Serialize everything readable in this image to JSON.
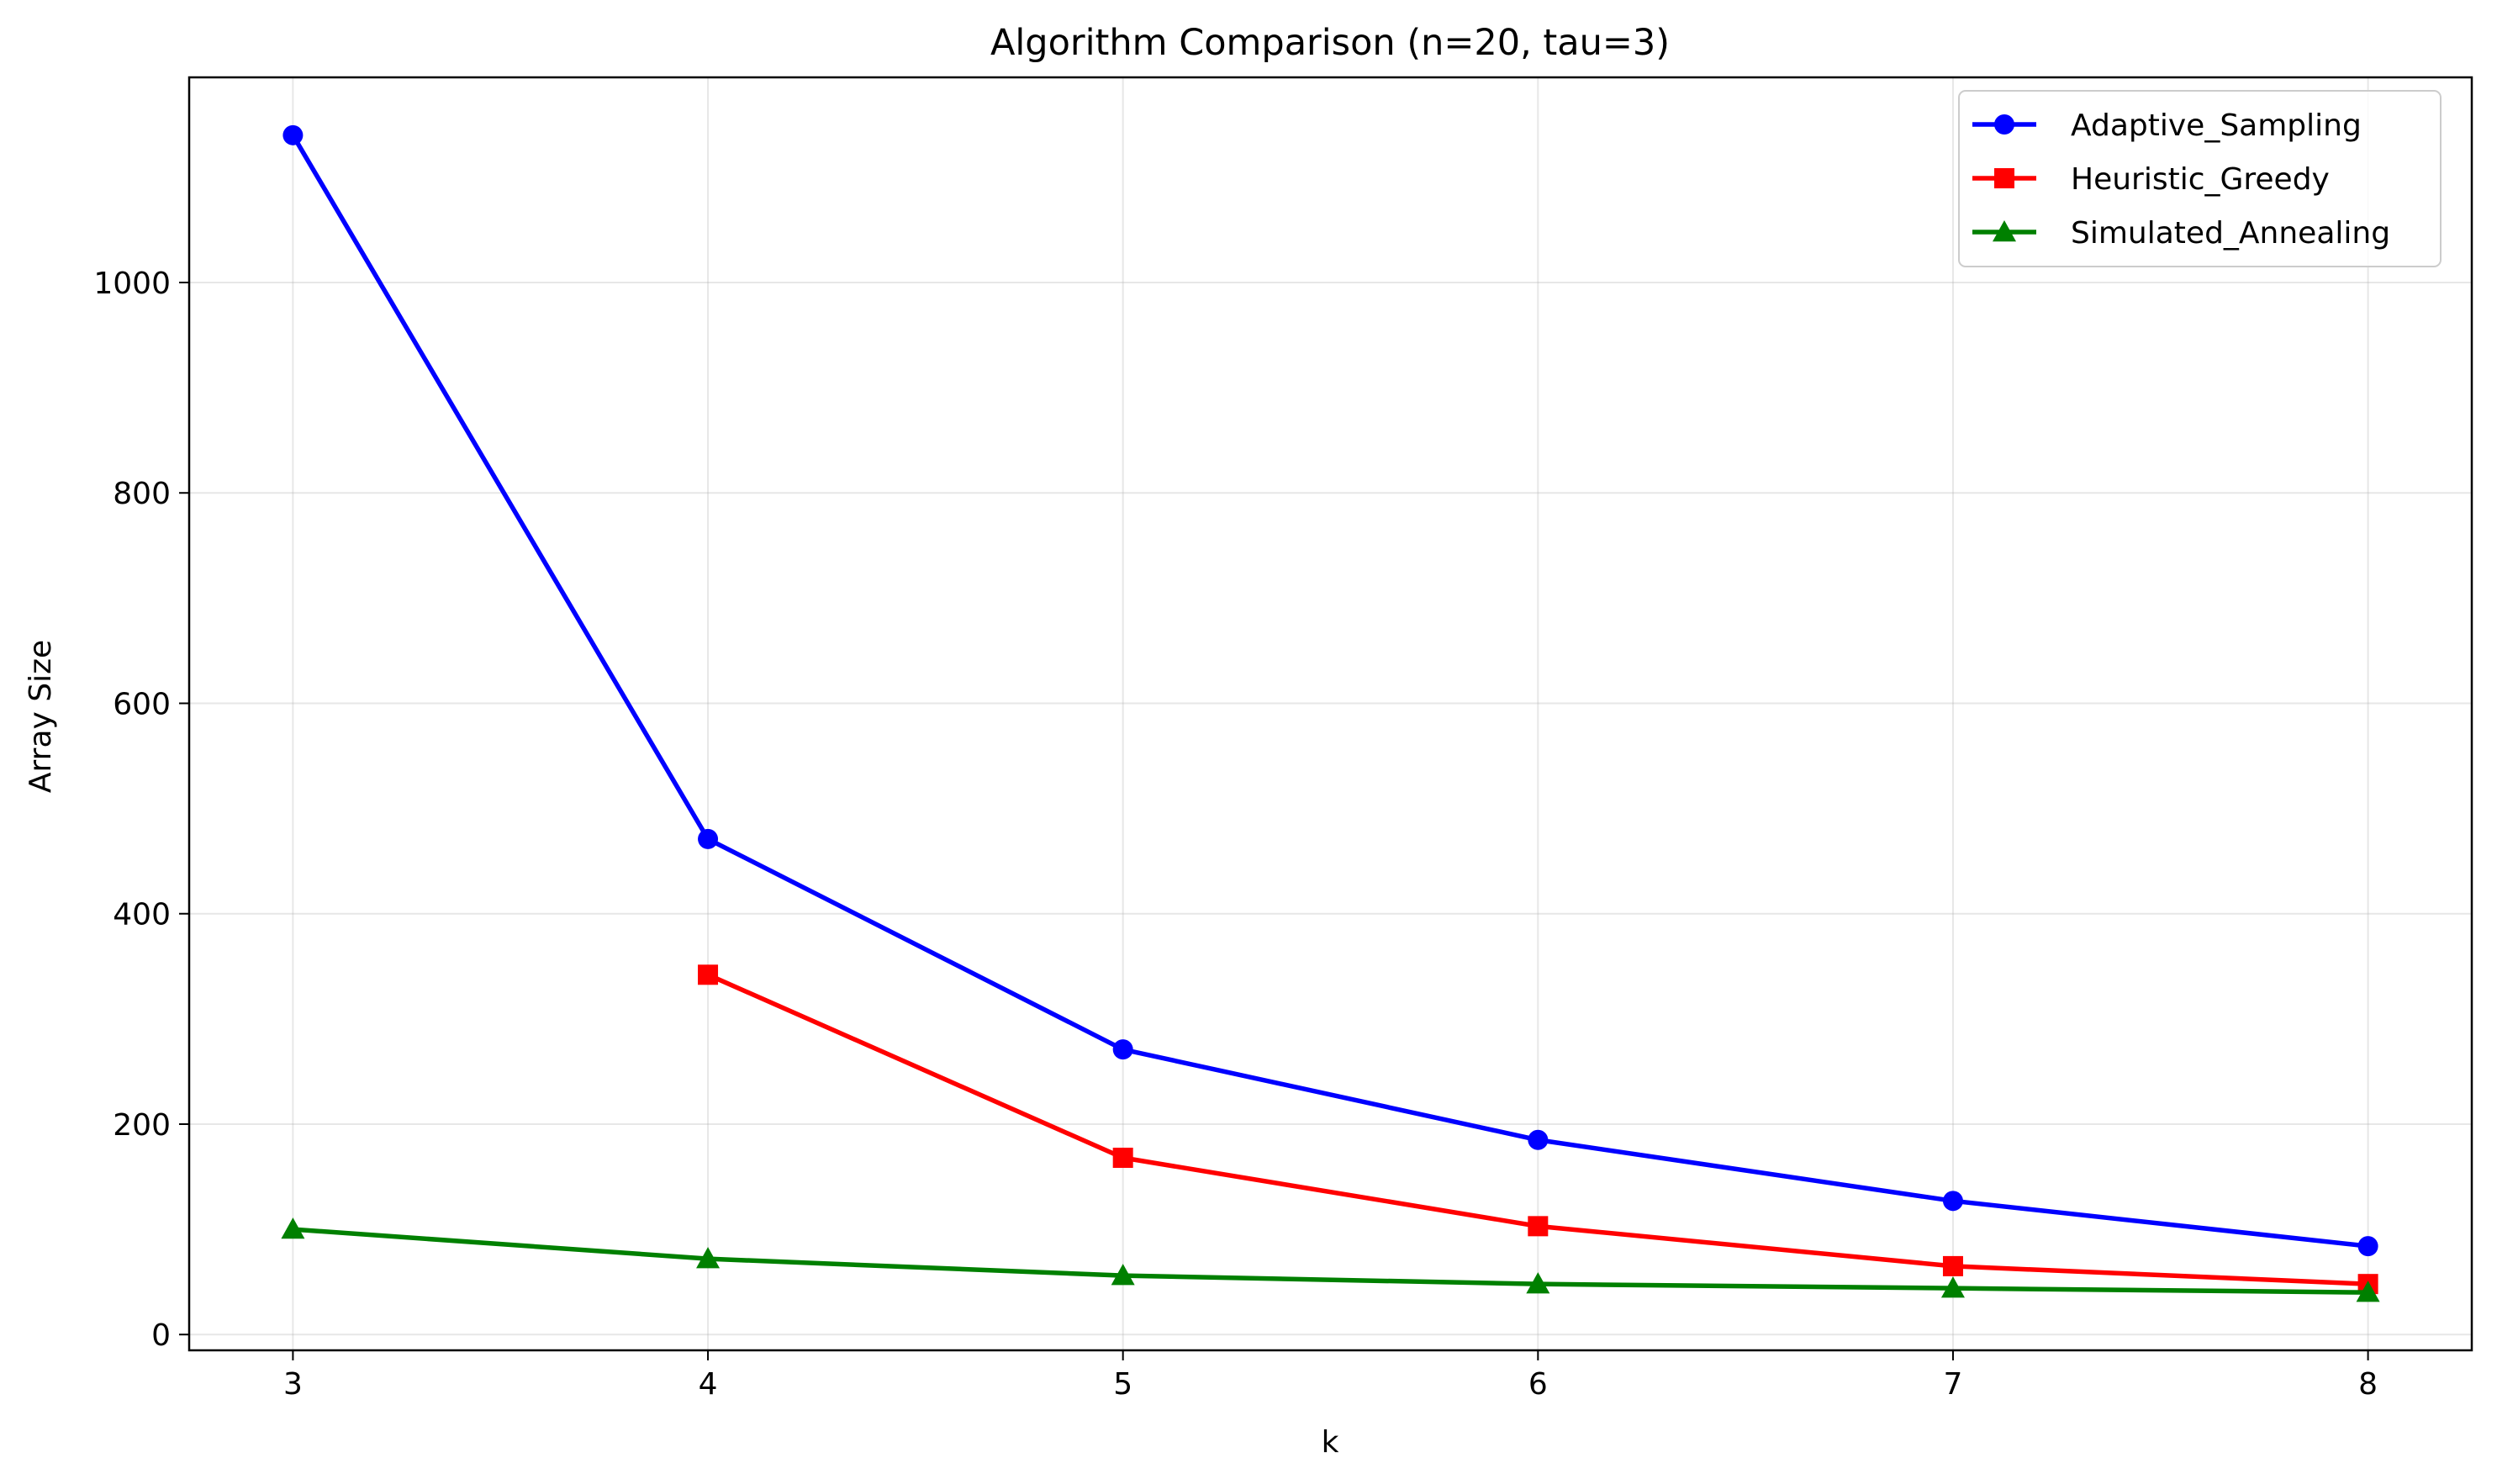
{
  "chart_data": {
    "type": "line",
    "title": "Algorithm Comparison (n=20, tau=3)",
    "xlabel": "k",
    "ylabel": "Array Size",
    "x": [
      3,
      4,
      5,
      6,
      7,
      8
    ],
    "xlim": [
      2.75,
      8.25
    ],
    "ylim": [
      -15,
      1195
    ],
    "xticks": [
      3,
      4,
      5,
      6,
      7,
      8
    ],
    "yticks": [
      0,
      200,
      400,
      600,
      800,
      1000
    ],
    "grid": true,
    "legend_position": "top-right",
    "series": [
      {
        "name": "Adaptive_Sampling",
        "color": "#0000ff",
        "marker": "circle",
        "values": [
          1140,
          471,
          271,
          185,
          127,
          84
        ]
      },
      {
        "name": "Heuristic_Greedy",
        "color": "#ff0000",
        "marker": "square",
        "values": [
          null,
          342,
          168,
          103,
          65,
          48
        ]
      },
      {
        "name": "Simulated_Annealing",
        "color": "#008000",
        "marker": "triangle",
        "values": [
          100,
          72,
          56,
          48,
          44,
          40
        ]
      }
    ]
  }
}
